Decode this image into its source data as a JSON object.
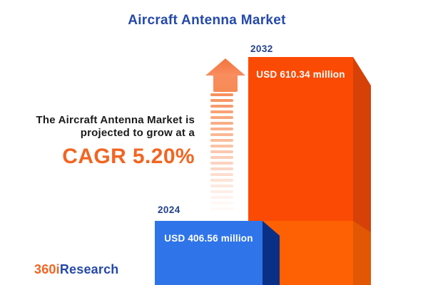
{
  "title": "Aircraft Antenna Market",
  "growth_annotation": {
    "line1": "The Aircraft Antenna Market is",
    "line2": "projected to grow at a",
    "cagr_text": "CAGR 5.20%"
  },
  "logo": {
    "part1": "360i",
    "part2": "Research"
  },
  "chart_data": {
    "type": "bar",
    "title": "Aircraft Antenna Market",
    "unit": "USD million",
    "categories": [
      "2024",
      "2032"
    ],
    "values": [
      406.56,
      610.34
    ],
    "value_labels": [
      "USD 406.56 million",
      "USD 610.34 million"
    ],
    "cagr_percent": "5.20%",
    "legend": "none",
    "grid": false,
    "layout_hint": "3d-style bars, base-year value shown as lighter segment inside 2032 bar, striped growth arrow between annotation and bars",
    "colors": {
      "title_blue": "#2549A9",
      "year_label_navy": "#24418F",
      "accent_orange": "#F26522",
      "bar_2024_front": "#2F74E9",
      "bar_2024_side": "#0A2F87",
      "bar_2032_front": "#FB4A04",
      "bar_2032_side": "#D64108",
      "bar_2032_base_front": "#FD6103",
      "bar_2032_base_side": "#E25704",
      "arrow_orange": "#F78B55",
      "annotation_text": "#1B1B1B",
      "value_text": "#FFFFFF"
    }
  }
}
